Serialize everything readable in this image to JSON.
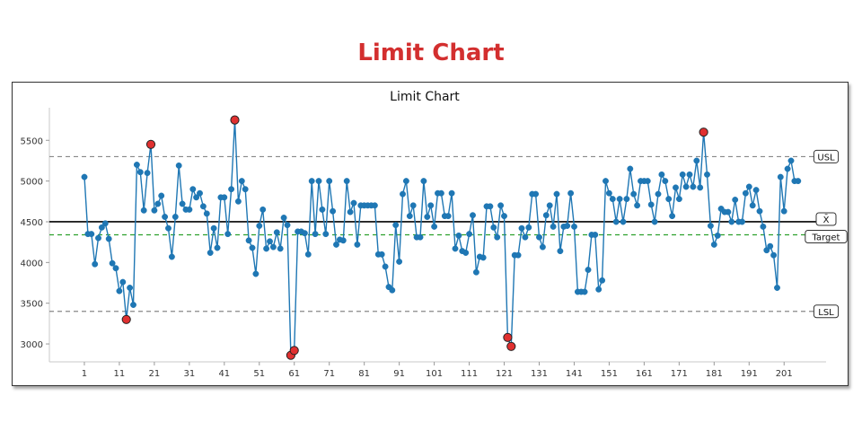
{
  "page": {
    "title": "Limit Chart"
  },
  "chart_data": {
    "type": "line",
    "title": "Limit Chart",
    "xlabel": "",
    "ylabel": "",
    "xlim": [
      -9,
      213
    ],
    "ylim": [
      2780,
      5900
    ],
    "xticks": [
      1,
      11,
      21,
      31,
      41,
      51,
      61,
      71,
      81,
      91,
      101,
      111,
      121,
      131,
      141,
      151,
      161,
      171,
      181,
      191,
      201
    ],
    "yticks": [
      3000,
      3500,
      4000,
      4500,
      5000,
      5500
    ],
    "grid": false,
    "limits": [
      {
        "label": "USL",
        "value": 5300,
        "color": "#888888",
        "style": "dashed"
      },
      {
        "label": "X̄",
        "value": 4500,
        "color": "#000000",
        "style": "solid"
      },
      {
        "label": "Target",
        "value": 4340,
        "color": "#2ca02c",
        "style": "dashed"
      },
      {
        "label": "LSL",
        "value": 3400,
        "color": "#888888",
        "style": "dashed"
      }
    ],
    "series": [
      {
        "color": "#1f77b4",
        "out_of_limit_color": "#e03030",
        "x_start": 1,
        "values": [
          5050,
          4350,
          4350,
          3980,
          4300,
          4430,
          4480,
          4290,
          3990,
          3930,
          3650,
          3760,
          3300,
          3690,
          3480,
          5200,
          5110,
          4640,
          5100,
          5450,
          4640,
          4720,
          4820,
          4560,
          4420,
          4070,
          4560,
          5190,
          4720,
          4650,
          4650,
          4900,
          4800,
          4850,
          4690,
          4600,
          4120,
          4420,
          4180,
          4800,
          4800,
          4350,
          4900,
          5750,
          4750,
          5000,
          4900,
          4270,
          4180,
          3860,
          4450,
          4650,
          4170,
          4260,
          4190,
          4370,
          4170,
          4550,
          4460,
          2860,
          2920,
          4380,
          4380,
          4360,
          4100,
          5000,
          4350,
          5000,
          4650,
          4350,
          5000,
          4630,
          4220,
          4280,
          4270,
          5000,
          4620,
          4730,
          4220,
          4700,
          4700,
          4700,
          4700,
          4700,
          4100,
          4100,
          3950,
          3700,
          3660,
          4460,
          4010,
          4840,
          5000,
          4570,
          4700,
          4310,
          4310,
          5000,
          4560,
          4700,
          4440,
          4850,
          4850,
          4570,
          4570,
          4850,
          4170,
          4330,
          4140,
          4120,
          4350,
          4580,
          3880,
          4070,
          4060,
          4690,
          4690,
          4430,
          4310,
          4700,
          4570,
          3080,
          2970,
          4090,
          4090,
          4420,
          4310,
          4430,
          4840,
          4840,
          4310,
          4190,
          4580,
          4700,
          4440,
          4840,
          4140,
          4440,
          4450,
          4850,
          4440,
          3640,
          3640,
          3640,
          3910,
          4340,
          4340,
          3670,
          3780,
          5000,
          4850,
          4780,
          4500,
          4780,
          4500,
          4780,
          5150,
          4840,
          4700,
          5000,
          5000,
          5000,
          4710,
          4500,
          4840,
          5080,
          5000,
          4780,
          4570,
          4920,
          4780,
          5080,
          4930,
          5080,
          4930,
          5250,
          4920,
          5600,
          5080,
          4450,
          4220,
          4330,
          4660,
          4620,
          4620,
          4500,
          4770,
          4500,
          4500,
          4850,
          4930,
          4700,
          4890,
          4630,
          4440,
          4150,
          4200,
          4090,
          3690,
          5050,
          4630,
          5150,
          5250,
          5000,
          5000
        ]
      }
    ]
  }
}
